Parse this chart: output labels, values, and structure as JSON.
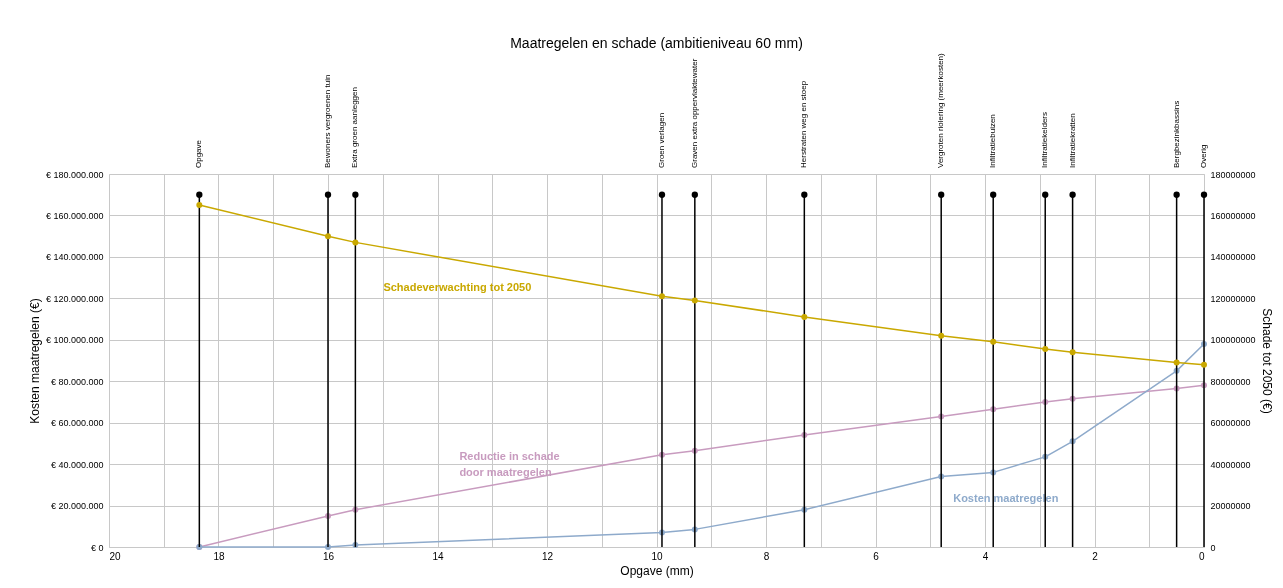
{
  "chart_data": {
    "type": "line",
    "title": "Maatregelen en schade (ambitieniveau 60 mm)",
    "xlabel": "Opgave (mm)",
    "ylabel": "Kosten maatregelen (€)",
    "y2label": "Schade tot 2050 (€)",
    "x": [
      18.35,
      16,
      15.5,
      9.9,
      9.3,
      7.3,
      4.8,
      3.85,
      2.9,
      2.4,
      0.5,
      0
    ],
    "series": [
      {
        "name": "Schadeverwachting tot 2050",
        "color": "#c9a800",
        "axis": "y2",
        "values": [
          165000000,
          150000000,
          147000000,
          121000000,
          119000000,
          111000000,
          102000000,
          99000000,
          95500000,
          94000000,
          89000000,
          88000000
        ]
      },
      {
        "name": "Reductie in schade door maatregelen",
        "color": "#c89bbf",
        "values": [
          0,
          15000000,
          18000000,
          44500000,
          46500000,
          54000000,
          63000000,
          66500000,
          70000000,
          71500000,
          76500000,
          78000000
        ]
      },
      {
        "name": "Kosten maatregelen",
        "color": "#8eaacb",
        "values": [
          0,
          0,
          1000000,
          7000000,
          8500000,
          18000000,
          34000000,
          36000000,
          43500000,
          51000000,
          85000000,
          98000000
        ]
      },
      {
        "type": "lollipop",
        "color": "#000000",
        "values": [
          170000000,
          170000000,
          170000000,
          170000000,
          170000000,
          170000000,
          170000000,
          170000000,
          170000000,
          170000000,
          170000000,
          170000000
        ],
        "value_labels": [
          "Opgave",
          "Bewoners vergroenen tuin",
          "Extra groen aanleggen",
          "Groen verlagen",
          "Graven extra oppervlaktewater",
          "Herstraten weg en stoep",
          "Vergroten riolering (meerkosten)",
          "Infiltratiebuizen",
          "Infiltratiekelders",
          "Infiltratiekratten",
          "Bergbezinkbassins",
          "Overig"
        ]
      }
    ],
    "xlim": [
      20,
      0
    ],
    "xticks": [
      0,
      2,
      4,
      6,
      8,
      10,
      12,
      14,
      16,
      18,
      20
    ],
    "ylim": [
      0,
      180000000
    ],
    "yticks": [
      {
        "value": 0,
        "label": "€ 0"
      },
      {
        "value": 20000000,
        "label": "€ 20.000.000"
      },
      {
        "value": 40000000,
        "label": "€ 40.000.000"
      },
      {
        "value": 60000000,
        "label": "€ 60.000.000"
      },
      {
        "value": 80000000,
        "label": "€ 80.000.000"
      },
      {
        "value": 100000000,
        "label": "€ 100.000.000"
      },
      {
        "value": 120000000,
        "label": "€ 120.000.000"
      },
      {
        "value": 140000000,
        "label": "€ 140.000.000"
      },
      {
        "value": 160000000,
        "label": "€ 160.000.000"
      },
      {
        "value": 180000000,
        "label": "€ 180.000.000"
      }
    ],
    "y2lim": [
      0,
      180000000
    ],
    "y2ticks": [
      0,
      20000000,
      40000000,
      60000000,
      80000000,
      100000000,
      120000000,
      140000000,
      160000000,
      180000000
    ],
    "grid": true,
    "legend": false,
    "marker": "circle",
    "line_style": "solid"
  }
}
